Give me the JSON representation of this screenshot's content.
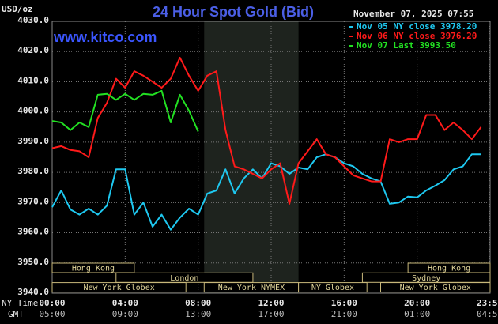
{
  "chart_data": {
    "type": "line",
    "title": "24 Hour Spot Gold (Bid)",
    "unit_label": "USD/oz",
    "watermark": "www.kitco.com",
    "timestamp": "November 07, 2025 07:55",
    "x_row_label": "NY Time",
    "x2_row_label": "GMT",
    "xlim": [
      0,
      24
    ],
    "xticks": [
      {
        "value": 0,
        "label": "00:00"
      },
      {
        "value": 4,
        "label": "04:00"
      },
      {
        "value": 8,
        "label": "08:00"
      },
      {
        "value": 12,
        "label": "12:00"
      },
      {
        "value": 16,
        "label": "16:00"
      },
      {
        "value": 20,
        "label": "20:00"
      },
      {
        "value": 23.983,
        "label": "23:59"
      }
    ],
    "x2ticks": [
      "05:00",
      "09:00",
      "13:00",
      "17:00",
      "21:00",
      "01:00",
      "04:59"
    ],
    "ylim": [
      3940,
      4030
    ],
    "yticks": [
      {
        "value": 3940,
        "label": "3940.0"
      },
      {
        "value": 3950,
        "label": "3950.0"
      },
      {
        "value": 3960,
        "label": "3960.0"
      },
      {
        "value": 3970,
        "label": "3970.0"
      },
      {
        "value": 3980,
        "label": "3980.0"
      },
      {
        "value": 3990,
        "label": "3990.0"
      },
      {
        "value": 4000,
        "label": "4000.0"
      },
      {
        "value": 4010,
        "label": "4010.0"
      },
      {
        "value": 4020,
        "label": "4020.0"
      },
      {
        "value": 4030,
        "label": "4030.0"
      }
    ],
    "grid": true,
    "x": [
      0,
      0.5,
      1,
      1.5,
      2,
      2.5,
      3,
      3.5,
      4,
      4.5,
      5,
      5.5,
      6,
      6.5,
      7,
      7.5,
      8,
      8.5,
      9,
      9.5,
      10,
      10.5,
      11,
      11.5,
      12,
      12.5,
      13,
      13.5,
      14,
      14.5,
      15,
      15.5,
      16,
      16.5,
      17,
      17.5,
      18,
      18.5,
      19,
      19.5,
      20,
      20.5,
      21,
      21.5,
      22,
      22.5,
      23,
      23.5
    ],
    "series": [
      {
        "name": "Nov 05 NY close 3978.20",
        "color": "#1ec8f0",
        "values": [
          3968.5,
          3974,
          3967.7,
          3966,
          3968,
          3966,
          3969,
          3981,
          3981,
          3966,
          3970,
          3962,
          3966,
          3961,
          3965,
          3968,
          3966,
          3973,
          3974,
          3981,
          3973,
          3978,
          3981,
          3978,
          3983,
          3982,
          3979.5,
          3981.6,
          3981,
          3985,
          3986,
          3985,
          3983,
          3982,
          3979.5,
          3978,
          3977,
          3969.6,
          3970,
          3972,
          3971.7,
          3974,
          3975.6,
          3977.4,
          3981,
          3982,
          3986,
          3986
        ]
      },
      {
        "name": "Nov 06 NY close 3976.20",
        "color": "#ff1a1a",
        "values": [
          3988,
          3988.7,
          3987.4,
          3987,
          3985,
          3998,
          4003,
          4011,
          4008,
          4013.5,
          4012,
          4010,
          4008,
          4011,
          4018,
          4012,
          4007,
          4012,
          4013.5,
          3994,
          3982,
          3981,
          3979.5,
          3978,
          3981,
          3983,
          3969.6,
          3983,
          3987,
          3991,
          3986,
          3985,
          3982,
          3979,
          3978,
          3977,
          3977,
          3991,
          3990,
          3991,
          3991,
          3999,
          3999,
          3994,
          3996.5,
          3994,
          3991,
          3995
        ]
      },
      {
        "name": "Nov 07 Last 3993.50",
        "color": "#22e022",
        "values": [
          3997,
          3996.5,
          3994,
          3996.5,
          3995,
          4005.7,
          4006,
          4004,
          4006,
          4004,
          4006,
          4005.7,
          4007,
          3996.5,
          4005.7,
          4000.4,
          3993.5,
          null,
          null,
          null,
          null,
          null,
          null,
          null,
          null,
          null,
          null,
          null,
          null,
          null,
          null,
          null,
          null,
          null,
          null,
          null,
          null,
          null,
          null,
          null,
          null,
          null,
          null,
          null,
          null,
          null,
          null,
          null
        ]
      }
    ],
    "session_rows": [
      [
        {
          "label": "Hong Kong",
          "start": 0,
          "end": 4.5
        },
        {
          "label": "Hong Kong",
          "start": 19.5,
          "end": 24
        }
      ],
      [
        {
          "label": "London",
          "start": 3.5,
          "end": 11
        },
        {
          "label": "Sydney",
          "start": 17,
          "end": 24
        }
      ],
      [
        {
          "label": "New York Globex",
          "start": 0,
          "end": 7.33
        },
        {
          "label": "New York NYMEX",
          "start": 8.33,
          "end": 13.5,
          "highlight": true
        },
        {
          "label": "NY Globex",
          "start": 13.5,
          "end": 17.25
        },
        {
          "label": "New York Globex",
          "start": 18,
          "end": 24
        }
      ]
    ]
  }
}
